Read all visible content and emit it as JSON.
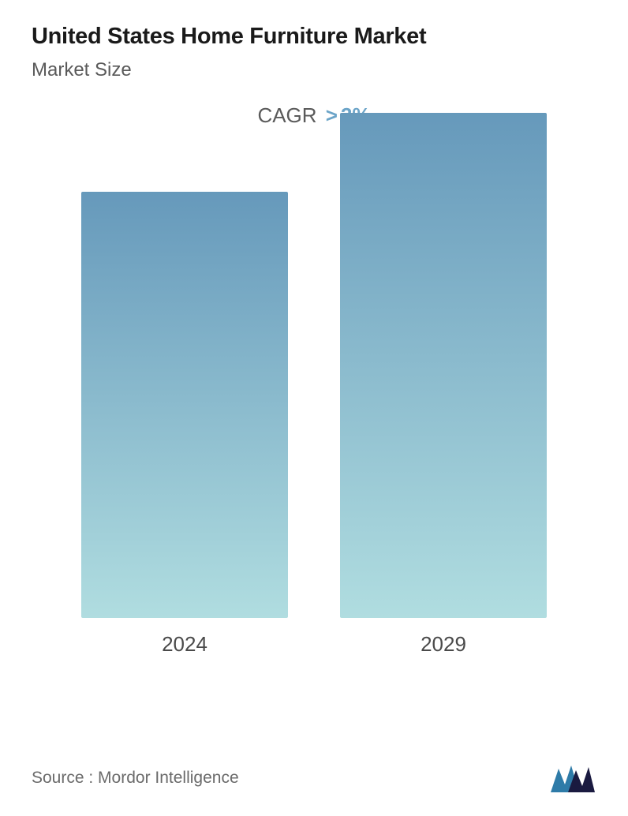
{
  "header": {
    "title": "United States Home Furniture Market",
    "subtitle": "Market Size"
  },
  "cagr": {
    "label": "CAGR",
    "operator": ">",
    "value": "3%"
  },
  "chart": {
    "type": "bar",
    "categories": [
      "2024",
      "2029"
    ],
    "values": [
      540,
      640
    ],
    "max_height": 640,
    "bar_gradient_top": "#6699bb",
    "bar_gradient_bottom": "#b0dde0",
    "bar_width_pct": 40,
    "background_color": "#ffffff",
    "label_fontsize": 26,
    "label_color": "#4a4a4a"
  },
  "footer": {
    "source_label": "Source :  Mordor Intelligence",
    "logo_color_primary": "#2e7ba8",
    "logo_color_secondary": "#1a1a40"
  }
}
